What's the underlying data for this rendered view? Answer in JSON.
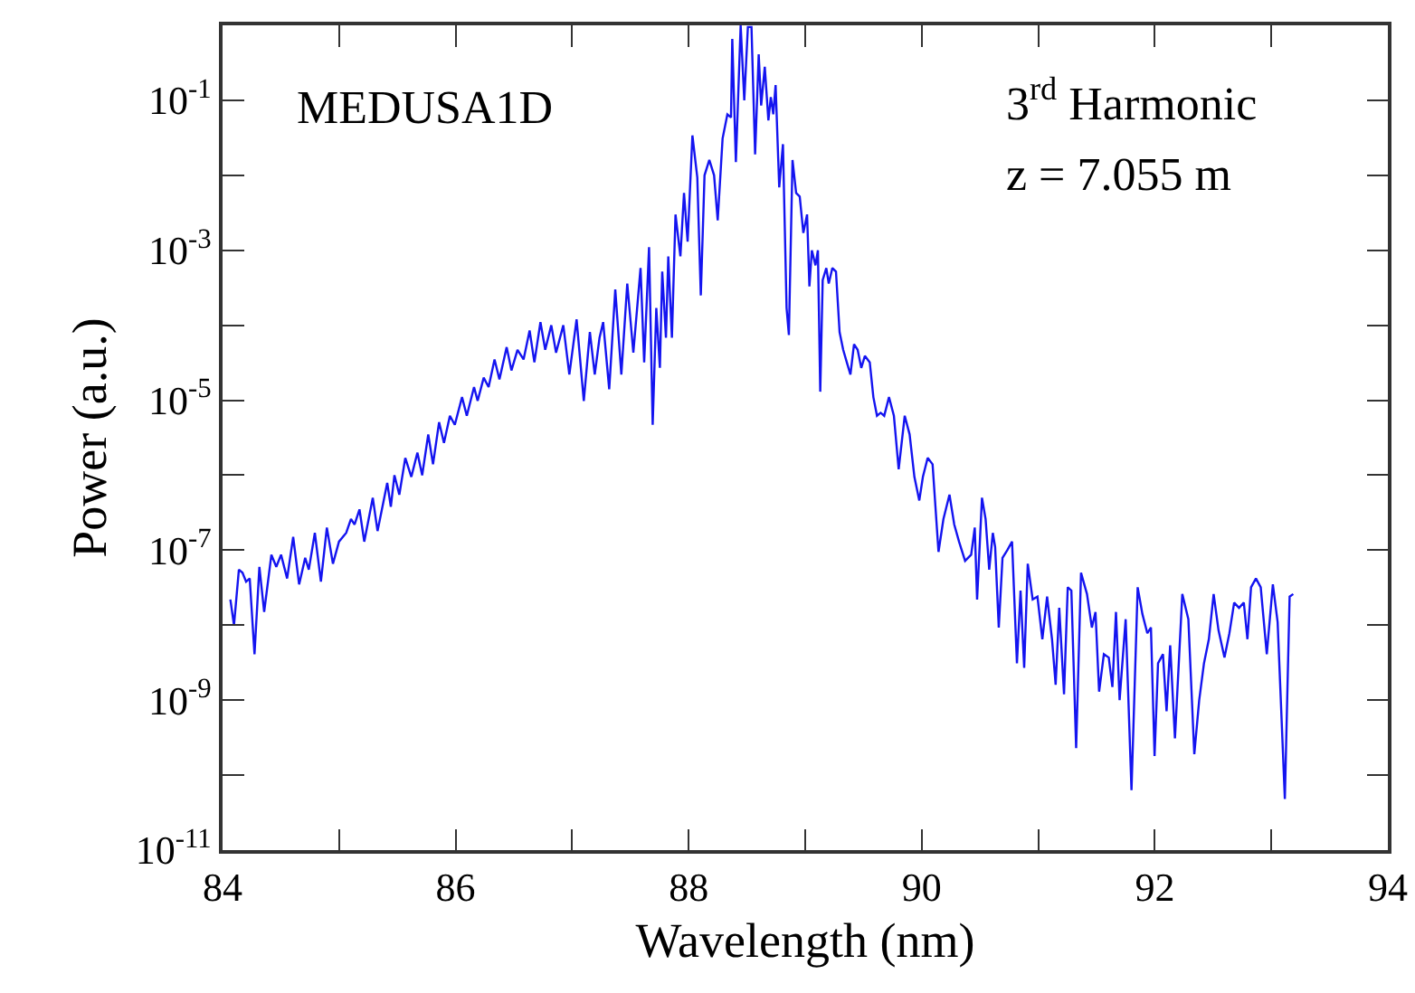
{
  "chart_data": {
    "type": "line",
    "xlabel": "Wavelength (nm)",
    "ylabel": "Power (a.u.)",
    "log": "y",
    "grid": false,
    "marker": "none",
    "line_style": "solid",
    "xlim": [
      84,
      94
    ],
    "xticks": [
      84,
      {
        "value": 85,
        "label": null
      },
      86,
      {
        "value": 87,
        "label": null
      },
      88,
      {
        "value": 89,
        "label": null
      },
      90,
      {
        "value": 91,
        "label": null
      },
      92,
      {
        "value": 93,
        "label": null
      },
      94
    ],
    "ylim": [
      1e-11,
      1
    ],
    "yticks": [
      {
        "value": 1,
        "label": null
      },
      {
        "value": 0.1,
        "label": "10$^{-1}$"
      },
      {
        "value": 0.01,
        "label": null
      },
      {
        "value": 0.001,
        "label": "10$^{-3}$"
      },
      {
        "value": 0.0001,
        "label": null
      },
      {
        "value": 1e-05,
        "label": "10$^{-5}$"
      },
      {
        "value": 1e-06,
        "label": null
      },
      {
        "value": 1e-07,
        "label": "10$^{-7}$"
      },
      {
        "value": 1e-08,
        "label": null
      },
      {
        "value": 1e-09,
        "label": "10$^{-9}$"
      },
      {
        "value": 1e-10,
        "label": null
      },
      {
        "value": 1e-11,
        "label": "10$^{-11}$"
      }
    ],
    "annotations": [
      "MEDUSA1D",
      "3$^{rd}$ Harmonic",
      "z = 7.055 m"
    ],
    "series": [
      {
        "color": "#1414f0",
        "x": [
          84.067,
          84.098,
          84.14,
          84.171,
          84.202,
          84.233,
          84.274,
          84.316,
          84.357,
          84.419,
          84.461,
          84.502,
          84.554,
          84.606,
          84.657,
          84.709,
          84.74,
          84.792,
          84.844,
          84.895,
          84.947,
          84.999,
          85.061,
          85.102,
          85.133,
          85.175,
          85.216,
          85.289,
          85.33,
          85.413,
          85.444,
          85.475,
          85.517,
          85.568,
          85.62,
          85.672,
          85.713,
          85.765,
          85.806,
          85.858,
          85.9,
          85.951,
          85.993,
          86.055,
          86.096,
          86.158,
          86.189,
          86.241,
          86.283,
          86.334,
          86.376,
          86.438,
          86.479,
          86.531,
          86.583,
          86.635,
          86.676,
          86.728,
          86.769,
          86.821,
          86.862,
          86.924,
          86.976,
          87.038,
          87.1,
          87.152,
          87.194,
          87.235,
          87.266,
          87.318,
          87.37,
          87.422,
          87.473,
          87.525,
          87.587,
          87.618,
          87.66,
          87.691,
          87.722,
          87.753,
          87.773,
          87.805,
          87.825,
          87.856,
          87.887,
          87.929,
          87.96,
          87.991,
          88.032,
          88.074,
          88.104,
          88.136,
          88.177,
          88.218,
          88.249,
          88.291,
          88.332,
          88.363,
          88.374,
          88.405,
          88.446,
          88.477,
          88.508,
          88.539,
          88.57,
          88.601,
          88.622,
          88.653,
          88.684,
          88.705,
          88.726,
          88.746,
          88.777,
          88.809,
          88.84,
          88.86,
          88.891,
          88.922,
          88.953,
          88.984,
          89.016,
          89.036,
          89.057,
          89.088,
          89.109,
          89.129,
          89.15,
          89.181,
          89.202,
          89.233,
          89.264,
          89.295,
          89.326,
          89.357,
          89.388,
          89.419,
          89.45,
          89.481,
          89.512,
          89.554,
          89.585,
          89.616,
          89.647,
          89.678,
          89.719,
          89.761,
          89.802,
          89.854,
          89.896,
          89.937,
          89.979,
          90.01,
          90.051,
          90.093,
          90.144,
          90.186,
          90.238,
          90.279,
          90.32,
          90.372,
          90.424,
          90.455,
          90.475,
          90.517,
          90.548,
          90.579,
          90.61,
          90.63,
          90.661,
          90.693,
          90.734,
          90.775,
          90.817,
          90.848,
          90.879,
          90.91,
          90.952,
          90.993,
          91.035,
          91.076,
          91.118,
          91.149,
          91.18,
          91.221,
          91.253,
          91.284,
          91.325,
          91.367,
          91.418,
          91.46,
          91.491,
          91.522,
          91.563,
          91.605,
          91.636,
          91.667,
          91.698,
          91.75,
          91.8,
          91.853,
          91.894,
          91.936,
          91.967,
          91.998,
          92.028,
          92.07,
          92.101,
          92.132,
          92.173,
          92.236,
          92.288,
          92.339,
          92.381,
          92.422,
          92.464,
          92.505,
          92.547,
          92.598,
          92.64,
          92.681,
          92.723,
          92.764,
          92.795,
          92.826,
          92.868,
          92.909,
          92.961,
          93.013,
          93.054,
          93.116,
          93.157,
          93.188
        ],
        "values": [
          2.2e-08,
          1e-08,
          5.5e-08,
          5e-08,
          3.8e-08,
          4.2e-08,
          4.1e-09,
          6e-08,
          1.5e-08,
          8.7e-08,
          6e-08,
          8.7e-08,
          4.2e-08,
          1.5e-07,
          3.5e-08,
          7.9e-08,
          5.5e-08,
          1.7e-07,
          3.8e-08,
          2e-07,
          6.6e-08,
          1.3e-07,
          1.7e-07,
          2.6e-07,
          2.2e-07,
          3.5e-07,
          1.3e-07,
          5e-07,
          1.8e-07,
          7.9e-07,
          3.8e-07,
          1e-06,
          5.5e-07,
          1.7e-06,
          9.5e-07,
          2e-06,
          1e-06,
          3.5e-06,
          1.4e-06,
          5.1e-06,
          2.7e-06,
          6.2e-06,
          4.7e-06,
          1.1e-05,
          6.2e-06,
          1.5e-05,
          9.8e-06,
          2e-05,
          1.5e-05,
          3.5e-05,
          1.9e-05,
          5.1e-05,
          2.5e-05,
          4.7e-05,
          3.5e-05,
          8.5e-05,
          3.2e-05,
          0.00011,
          4.7e-05,
          0.0001,
          4.3e-05,
          0.0001,
          2.2e-05,
          0.00012,
          9.8e-06,
          8.1e-05,
          2.2e-05,
          6.8e-05,
          0.00011,
          1.4e-05,
          0.0003,
          2.2e-05,
          0.00036,
          4.3e-05,
          0.00058,
          3.2e-05,
          0.0011,
          4.7e-06,
          0.00017,
          2.7e-05,
          0.00052,
          6.8e-05,
          0.00083,
          6.8e-05,
          0.003,
          0.00083,
          0.0058,
          0.0013,
          0.034,
          0.0093,
          0.00025,
          0.01,
          0.016,
          0.01,
          0.0025,
          0.031,
          0.065,
          0.059,
          0.66,
          0.015,
          1,
          0.1,
          0.95,
          0.95,
          0.019,
          0.41,
          0.085,
          0.28,
          0.054,
          0.11,
          0.065,
          0.16,
          0.0069,
          0.026,
          0.00017,
          7.4e-05,
          0.016,
          0.0058,
          0.0052,
          0.0017,
          0.003,
          0.00033,
          0.001,
          0.00063,
          0.001,
          1.3e-05,
          0.0004,
          0.00058,
          0.00036,
          0.00058,
          0.00052,
          8.1e-05,
          4.7e-05,
          3.2e-05,
          2.2e-05,
          5.6e-05,
          4.7e-05,
          2.7e-05,
          3.9e-05,
          3.2e-05,
          1.1e-05,
          6.2e-06,
          6.8e-06,
          6.2e-06,
          1.1e-05,
          6.2e-06,
          1.2e-06,
          6.2e-06,
          3.5e-06,
          9.5e-07,
          4.6e-07,
          9.5e-07,
          1.7e-06,
          1.4e-06,
          9.5e-08,
          2.6e-07,
          5.5e-07,
          2.2e-07,
          1.3e-07,
          7.2e-08,
          8.7e-08,
          2e-07,
          2.2e-08,
          5e-07,
          2.6e-07,
          5.5e-08,
          1.7e-07,
          1.1e-07,
          9.3e-09,
          7.9e-08,
          1e-07,
          1.3e-07,
          3.1e-09,
          2.9e-08,
          2.7e-09,
          6.6e-08,
          2.2e-08,
          2.4e-08,
          6.5e-09,
          2.4e-08,
          6.5e-09,
          1.6e-09,
          1.7e-08,
          1.2e-09,
          3.2e-08,
          2.9e-08,
          2.3e-10,
          5e-08,
          2.6e-08,
          9.3e-09,
          1.5e-08,
          1.3e-09,
          4.1e-09,
          3.7e-09,
          1.5e-09,
          1.5e-08,
          1e-09,
          1.2e-08,
          6.3e-11,
          3.2e-08,
          1.4e-08,
          7.8e-09,
          9.3e-09,
          1.8e-10,
          3.1e-09,
          4.1e-09,
          7.1e-10,
          5.4e-09,
          3.1e-10,
          2.6e-08,
          1.2e-08,
          1.9e-10,
          1e-09,
          3.1e-09,
          6.5e-09,
          2.6e-08,
          8.5e-09,
          3.7e-09,
          7.8e-09,
          2e-08,
          1.7e-08,
          2e-08,
          6.5e-09,
          3.2e-08,
          4.2e-08,
          3.2e-08,
          4.1e-09,
          3.5e-08,
          1.1e-08,
          4.8e-11,
          2.4e-08,
          2.6e-08
        ]
      }
    ]
  }
}
